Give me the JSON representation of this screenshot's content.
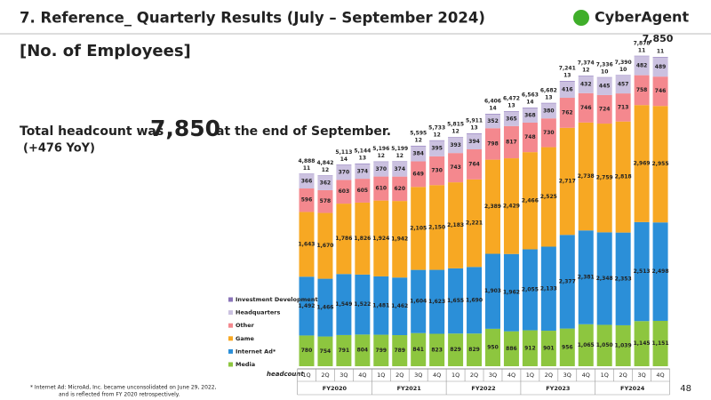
{
  "header": {
    "title": "7. Reference_ Quarterly Results (July – September 2024)",
    "logo": "CyberAgent",
    "section": "[No. of Employees]"
  },
  "headline": {
    "prefix": "Total headcount was",
    "figure": "7,850",
    "suffix": "at the end of September.",
    "yoy": "(+476 YoY)"
  },
  "chart_data": {
    "type": "stacked_bar",
    "axis_label": "headcount",
    "legend": "left",
    "categories": [
      "1Q",
      "2Q",
      "3Q",
      "4Q",
      "1Q",
      "2Q",
      "3Q",
      "4Q",
      "1Q",
      "2Q",
      "3Q",
      "4Q",
      "1Q",
      "2Q",
      "3Q",
      "4Q",
      "1Q",
      "2Q",
      "3Q",
      "4Q"
    ],
    "groups": [
      "FY2020",
      "FY2021",
      "FY2022",
      "FY2023",
      "FY2024"
    ],
    "series": [
      {
        "name": "Media",
        "color": "#8dc63f",
        "values": [
          780,
          754,
          791,
          804,
          799,
          789,
          841,
          823,
          829,
          829,
          950,
          886,
          912,
          901,
          956,
          1065,
          1050,
          1039,
          1145,
          1151
        ],
        "value_labels": [
          "780",
          "754",
          "791",
          "804",
          "799",
          "789",
          "841",
          "823",
          "829",
          "829",
          "950",
          "886",
          "912",
          "901",
          "956",
          "1,065",
          "1,050",
          "1,039",
          "1,145",
          "1,151"
        ]
      },
      {
        "name": "Internet Ad*",
        "color": "#2b8fd8",
        "values": [
          1492,
          1466,
          1549,
          1522,
          1481,
          1462,
          1604,
          1623,
          1655,
          1690,
          1903,
          1962,
          2055,
          2133,
          2377,
          2381,
          2348,
          2353,
          2513,
          2498
        ],
        "value_labels": [
          "1,492",
          "1,466",
          "1,549",
          "1,522",
          "1,481",
          "1,462",
          "1,604",
          "1,623",
          "1,655",
          "1,690",
          "1,903",
          "1,962",
          "2,055",
          "2,133",
          "2,377",
          "2,381",
          "2,348",
          "2,353",
          "2,513",
          "2,498"
        ]
      },
      {
        "name": "Game",
        "color": "#f7a823",
        "values": [
          1643,
          1670,
          1786,
          1826,
          1924,
          1942,
          2105,
          2150,
          2183,
          2221,
          2389,
          2429,
          2466,
          2525,
          2717,
          2738,
          2759,
          2818,
          2969,
          2955
        ],
        "value_labels": [
          "1,643",
          "1,670",
          "1,786",
          "1,826",
          "1,924",
          "1,942",
          "2,105",
          "2,150",
          "2,183",
          "2,221",
          "2,389",
          "2,429",
          "2,466",
          "2,525",
          "2,717",
          "2,738",
          "2,759",
          "2,818",
          "2,969",
          "2,955"
        ]
      },
      {
        "name": "Other",
        "color": "#f4888e",
        "values": [
          596,
          578,
          603,
          605,
          610,
          620,
          649,
          730,
          743,
          764,
          798,
          817,
          748,
          730,
          762,
          746,
          724,
          713,
          758,
          746
        ]
      },
      {
        "name": "Headquarters",
        "color": "#cbc1e0",
        "values": [
          366,
          362,
          370,
          374,
          370,
          374,
          384,
          395,
          393,
          394,
          352,
          365,
          368,
          380,
          416,
          432,
          445,
          457,
          482,
          489
        ]
      },
      {
        "name": "Investment Development",
        "color": "#8a74b8",
        "values": [
          11,
          12,
          14,
          13,
          12,
          12,
          12,
          12,
          12,
          13,
          14,
          13,
          14,
          13,
          13,
          12,
          10,
          10,
          11,
          11
        ]
      }
    ],
    "totals": [
      4888,
      4842,
      5113,
      5144,
      5196,
      5199,
      5595,
      5733,
      5815,
      5911,
      6406,
      6472,
      6563,
      6682,
      7241,
      7374,
      7336,
      7390,
      7878,
      7850
    ],
    "total_labels": [
      "4,888",
      "4,842",
      "5,113",
      "5,144",
      "5,196",
      "5,199",
      "5,595",
      "5,733",
      "5,815",
      "5,911",
      "6,406",
      "6,472",
      "6,563",
      "6,682",
      "7,241",
      "7,374",
      "7,336",
      "7,390",
      "7,878",
      "7,850"
    ]
  },
  "footnote": [
    "* Internet Ad: MicroAd, Inc. became unconsolidated on June 29, 2022,",
    "and is reflected from FY 2020 retrospectively."
  ],
  "page_number": "48"
}
